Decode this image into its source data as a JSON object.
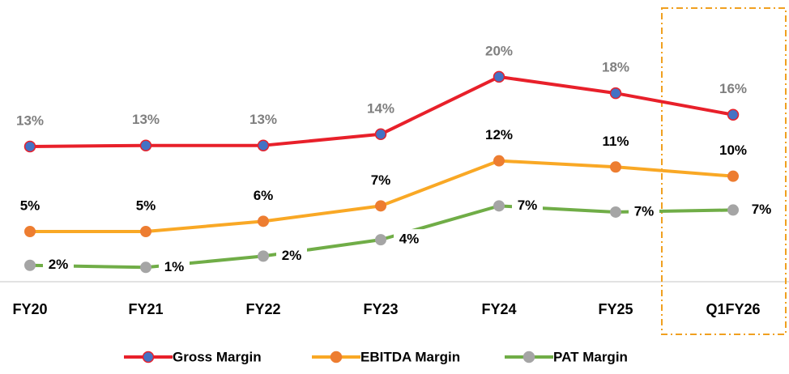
{
  "chart_data": {
    "type": "line",
    "categories": [
      "FY20",
      "FY21",
      "FY22",
      "FY23",
      "FY24",
      "FY25",
      "Q1FY26"
    ],
    "series": [
      {
        "name": "Gross Margin",
        "color": "#e8202a",
        "marker_color": "#4472c4",
        "label_color": "#7f7f7f",
        "values": [
          13.2,
          13.3,
          13.3,
          14.4,
          20,
          18.4,
          16.3
        ],
        "value_labels": [
          "13%",
          "13%",
          "13%",
          "14%",
          "20%",
          "18%",
          "16%"
        ]
      },
      {
        "name": "EBITDA Margin",
        "color": "#f9a825",
        "marker_color": "#ed7d31",
        "label_color": "#000000",
        "values": [
          4.9,
          4.9,
          5.9,
          7.4,
          11.8,
          11.2,
          10.3
        ],
        "value_labels": [
          "5%",
          "5%",
          "6%",
          "7%",
          "12%",
          "11%",
          "10%"
        ]
      },
      {
        "name": "PAT Margin",
        "color": "#70ad47",
        "marker_color": "#a5a5a5",
        "label_color": "#000000",
        "values": [
          1.6,
          1.4,
          2.5,
          4.1,
          7.4,
          6.8,
          7.0
        ],
        "value_labels": [
          "2%",
          "1%",
          "2%",
          "4%",
          "7%",
          "7%",
          "7%"
        ]
      }
    ],
    "ylim": [
      0,
      27.5
    ]
  }
}
